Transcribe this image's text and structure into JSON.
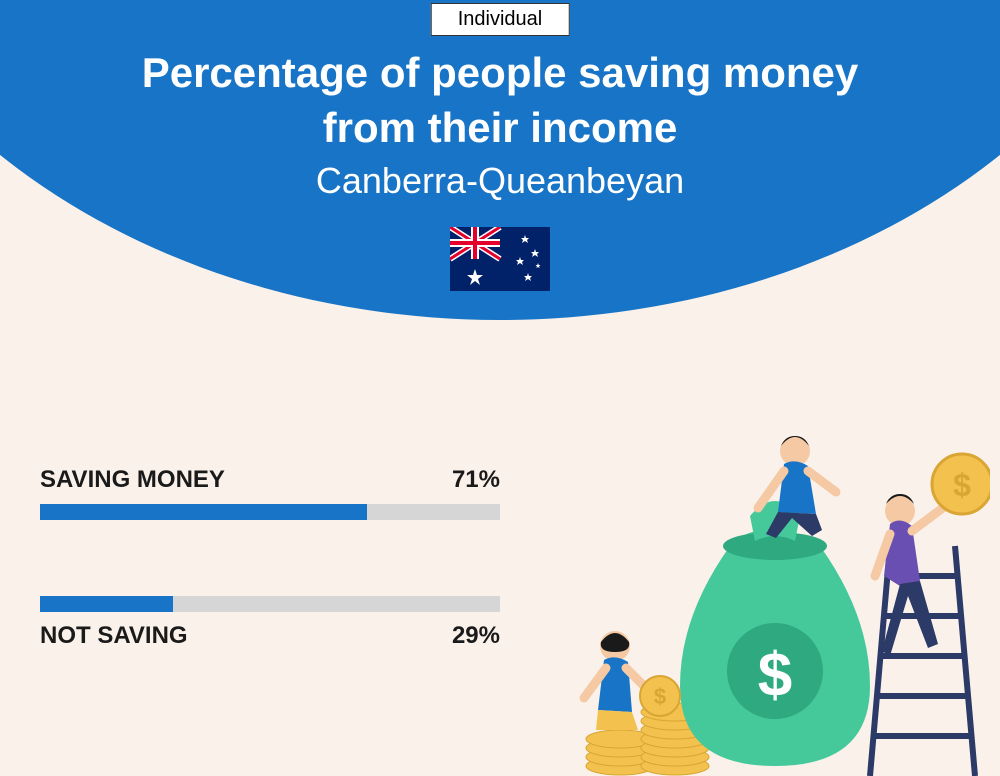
{
  "badge": "Individual",
  "title": "Percentage of people saving money from their income",
  "subtitle": "Canberra-Queanbeyan",
  "colors": {
    "header_bg": "#1774c6",
    "page_bg": "#faf1ea",
    "bar_fill": "#1774c6",
    "bar_track": "#d6d6d6",
    "title_text": "#ffffff",
    "label_text": "#1a1a1a"
  },
  "flag": {
    "bg": "#012169",
    "red": "#E4002B",
    "white": "#ffffff"
  },
  "bars": [
    {
      "label": "SAVING MONEY",
      "value": 71,
      "value_text": "71%",
      "label_position": "above"
    },
    {
      "label": "NOT SAVING",
      "value": 29,
      "value_text": "29%",
      "label_position": "below"
    }
  ],
  "illustration": {
    "bag_color": "#45c99b",
    "bag_dark": "#2fa97f",
    "coin_color": "#f2c14e",
    "coin_dark": "#d9a534",
    "ladder_color": "#2b3a67",
    "person1_top": "#1774c6",
    "person1_bottom": "#2b3a67",
    "person2_top": "#6a4fb3",
    "person2_bottom": "#2b3a67",
    "person3_top": "#1774c6",
    "person3_bottom": "#f2c14e",
    "skin": "#f5c9a3",
    "hair": "#1a1a1a"
  }
}
